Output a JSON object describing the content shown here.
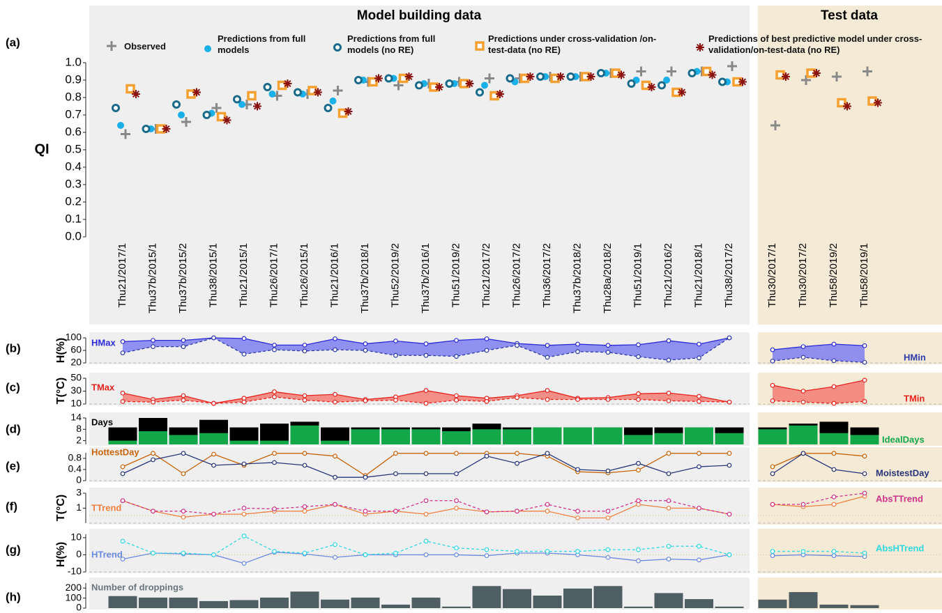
{
  "chart_data": [
    {
      "type": "scatter",
      "panel_label": "(a)",
      "title": "Model building data",
      "test_title": "Test data",
      "ylabel": "QI",
      "categories": [
        "Thu21/2017/1",
        "Thu37b/2015/1",
        "Thu37b/2015/2",
        "Thu38/2015/1",
        "Thu21/2015/1",
        "Thu26/2017/1",
        "Thu26/2015/1",
        "Thu21/2016/1",
        "Thu37b/2018/1",
        "Thu52/2019/2",
        "Thu37b/2016/1",
        "Thu51/2019/2",
        "Thu21/2017/2",
        "Thu26/2017/2",
        "Thu36/2017/2",
        "Thu37b/2018/2",
        "Thu28a/2018/2",
        "Thu51/2019/1",
        "Thu21/2016/2",
        "Thu21/2018/1",
        "Thu38/2017/2"
      ],
      "test_categories": [
        "Thu30/2017/1",
        "Thu30/2017/2",
        "Thu58/2019/2",
        "Thu58/2019/1"
      ],
      "ylim": [
        0,
        1
      ],
      "yticks": [
        {
          "value": 0,
          "label": "0.0"
        },
        0.1,
        0.2,
        0.3,
        0.4,
        0.5,
        0.6,
        0.7,
        0.8,
        0.9,
        {
          "value": 1,
          "label": "1.0"
        }
      ],
      "series": [
        {
          "name": "Observed",
          "marker": "plus",
          "color": "#888888",
          "values": [
            0.59,
            0.62,
            0.66,
            0.74,
            0.76,
            0.81,
            0.82,
            0.84,
            0.89,
            0.87,
            0.88,
            0.89,
            0.91,
            0.91,
            0.92,
            0.92,
            0.94,
            0.95,
            0.95,
            0.95,
            0.98
          ],
          "test_values": [
            0.64,
            0.9,
            0.92,
            0.95
          ]
        },
        {
          "name": "Predictions from full models",
          "marker": "dot",
          "color": "#1ab0e8",
          "values": [
            0.64,
            0.62,
            0.7,
            0.71,
            0.76,
            0.82,
            0.82,
            0.78,
            0.9,
            0.91,
            0.88,
            0.88,
            0.87,
            0.89,
            0.92,
            0.92,
            0.94,
            0.9,
            0.9,
            0.95,
            0.89
          ],
          "test_values": [
            null,
            null,
            null,
            null
          ]
        },
        {
          "name": "Predictions from full models (no RE)",
          "marker": "ring",
          "color": "#1a6a8a",
          "values": [
            0.74,
            0.62,
            0.76,
            0.7,
            0.79,
            0.86,
            0.83,
            0.74,
            0.9,
            0.91,
            0.87,
            0.88,
            0.83,
            0.91,
            0.92,
            0.92,
            0.94,
            0.88,
            0.87,
            0.94,
            0.89
          ],
          "test_values": [
            null,
            null,
            null,
            null
          ]
        },
        {
          "name": "Predictions under cross-validation /on-test-data (no RE)",
          "marker": "square",
          "color": "#f5a030",
          "values": [
            0.85,
            0.62,
            0.82,
            0.69,
            0.81,
            0.87,
            0.84,
            0.71,
            0.89,
            0.91,
            0.86,
            0.88,
            0.81,
            0.91,
            0.91,
            0.92,
            0.94,
            0.87,
            0.83,
            0.95,
            0.89
          ],
          "test_values": [
            0.93,
            0.94,
            0.77,
            0.78
          ]
        },
        {
          "name": "Predictions of best predictive model under cross-validation/on-test-data (no RE)",
          "marker": "asterisk",
          "color": "#8b1010",
          "values": [
            0.82,
            0.62,
            0.83,
            0.67,
            0.75,
            0.88,
            0.83,
            0.72,
            0.91,
            0.92,
            0.86,
            0.88,
            0.82,
            0.92,
            0.92,
            0.92,
            0.93,
            0.86,
            0.83,
            0.93,
            0.89
          ],
          "test_values": [
            0.92,
            0.94,
            0.75,
            0.77
          ]
        }
      ]
    },
    {
      "type": "area",
      "panel_label": "(b)",
      "ylabel": "H(%)",
      "ylim": [
        20,
        100
      ],
      "yticks": [
        20,
        60,
        100
      ],
      "fill": "#8585f0",
      "series": [
        {
          "name": "HMax",
          "color": "#2a2ad8",
          "linestyle": "solid",
          "values": [
            88,
            92,
            92,
            100,
            98,
            77,
            77,
            97,
            81,
            90,
            81,
            92,
            97,
            82,
            76,
            80,
            76,
            78,
            91,
            80,
            100
          ],
          "test_values": [
            62,
            72,
            80,
            75
          ]
        },
        {
          "name": "HMin",
          "color": "#2a3aa8",
          "linestyle": "dashed",
          "values": [
            52,
            72,
            72,
            100,
            48,
            62,
            58,
            62,
            60,
            44,
            44,
            41,
            60,
            76,
            38,
            56,
            54,
            40,
            29,
            36,
            100
          ],
          "test_values": [
            26,
            38,
            27,
            22
          ]
        }
      ]
    },
    {
      "type": "area",
      "panel_label": "(c)",
      "ylabel": "T(°C)",
      "ylim": [
        10,
        50
      ],
      "yticks": [
        10,
        30,
        50
      ],
      "fill": "#f4847c",
      "series": [
        {
          "name": "TMax",
          "color": "#e8221d",
          "linestyle": "solid",
          "values": [
            27,
            17,
            23,
            11,
            19,
            29,
            23,
            25,
            17,
            21,
            31,
            23,
            19,
            23,
            31,
            19,
            20,
            26,
            27,
            22,
            13
          ],
          "test_values": [
            39,
            30,
            37,
            47
          ]
        },
        {
          "name": "TMin",
          "color": "#e8221d",
          "linestyle": "dashed",
          "values": [
            14,
            13,
            16,
            11,
            13,
            21,
            16,
            13,
            15,
            16,
            11,
            16,
            14,
            20,
            17,
            17,
            17,
            17,
            15,
            14,
            13
          ],
          "test_values": [
            15,
            13,
            11,
            14
          ]
        }
      ]
    },
    {
      "type": "bar",
      "panel_label": "(d)",
      "ylim": [
        0,
        14
      ],
      "yticks": [
        2,
        8,
        14
      ],
      "series": [
        {
          "name": "Days",
          "color": "#000000",
          "values": [
            9,
            14,
            9,
            13,
            9,
            11,
            12,
            9,
            9,
            9,
            9,
            9,
            11,
            9,
            9,
            9,
            9,
            9,
            9,
            9,
            9
          ],
          "test_values": [
            9,
            11,
            12,
            9
          ]
        },
        {
          "name": "IdealDays",
          "color": "#12a84a",
          "values": [
            2,
            7,
            5,
            6,
            2,
            2,
            10,
            2,
            8,
            8,
            8,
            7,
            8,
            8,
            9,
            9,
            9,
            5,
            6,
            9,
            6
          ],
          "test_values": [
            8,
            10,
            6,
            5
          ]
        }
      ]
    },
    {
      "type": "line",
      "panel_label": "(e)",
      "ylim": [
        0,
        1
      ],
      "yticks": [
        0,
        0.4,
        0.8
      ],
      "series": [
        {
          "name": "HottestDay",
          "color": "#c8640a",
          "linestyle": "solid",
          "values": [
            0.5,
            0.98,
            0.25,
            0.95,
            0.55,
            0.98,
            0.98,
            0.88,
            0.18,
            0.98,
            0.98,
            0.98,
            0.98,
            0.98,
            0.88,
            0.32,
            0.28,
            0.38,
            0.98,
            0.98,
            0.98
          ],
          "test_values": [
            0.5,
            0.98,
            0.98,
            0.88
          ]
        },
        {
          "name": "MoistestDay",
          "color": "#26357a",
          "linestyle": "solid",
          "values": [
            0.25,
            0.75,
            0.98,
            0.55,
            0.6,
            0.65,
            0.55,
            0.12,
            0.12,
            0.25,
            0.25,
            0.25,
            0.88,
            0.62,
            0.98,
            0.4,
            0.35,
            0.62,
            0.25,
            0.5,
            0.55
          ],
          "test_values": [
            0.25,
            0.98,
            0.4,
            0.25
          ]
        }
      ]
    },
    {
      "type": "line",
      "panel_label": "(f)",
      "ylabel": "T(°C)",
      "ylim": [
        -1,
        3
      ],
      "yticks": [
        1,
        3
      ],
      "hline": 0,
      "series": [
        {
          "name": "TTrend",
          "color": "#f08040",
          "linestyle": "solid",
          "values": [
            2.0,
            0.6,
            -0.2,
            0.2,
            0.2,
            0.6,
            0.6,
            1.5,
            0.2,
            0.6,
            0.2,
            1.0,
            0.5,
            0.6,
            0.6,
            -0.3,
            -0.3,
            1.5,
            1.0,
            1.0,
            0.2
          ],
          "test_values": [
            1.5,
            1.2,
            1.5,
            2.6
          ]
        },
        {
          "name": "AbsTTrend",
          "color": "#d0308a",
          "linestyle": "dashed",
          "values": [
            2.0,
            0.6,
            0.6,
            0.2,
            1.0,
            0.9,
            1.2,
            1.5,
            0.6,
            0.6,
            2.0,
            2.0,
            0.5,
            0.6,
            1.5,
            0.6,
            0.6,
            2.0,
            2.0,
            1.0,
            0.2
          ],
          "test_values": [
            1.5,
            1.5,
            2.5,
            3.0
          ]
        }
      ]
    },
    {
      "type": "line",
      "panel_label": "(g)",
      "ylabel": "H(%)",
      "ylim": [
        -10,
        12
      ],
      "yticks": [
        -10,
        0,
        10
      ],
      "hline": 0,
      "series": [
        {
          "name": "HTrend",
          "color": "#6a8ae0",
          "linestyle": "solid",
          "values": [
            -2.5,
            1,
            0.5,
            0,
            -5,
            1.5,
            0.5,
            -1.5,
            0,
            0,
            0,
            0,
            -0.5,
            1,
            1,
            0,
            -1.5,
            -3.5,
            -2.5,
            -3,
            0
          ],
          "test_values": [
            -0.5,
            0,
            -0.5,
            -1
          ]
        },
        {
          "name": "AbsHTrend",
          "color": "#30d8e0",
          "linestyle": "dashed",
          "values": [
            8,
            1,
            1,
            0,
            11,
            2,
            1,
            6,
            0,
            1,
            8,
            4,
            3,
            2,
            2,
            2,
            3,
            3,
            5,
            5,
            0
          ],
          "test_values": [
            2,
            2,
            2,
            1
          ]
        }
      ]
    },
    {
      "type": "bar",
      "panel_label": "(h)",
      "ylim": [
        0,
        250
      ],
      "yticks": [
        0,
        100,
        200
      ],
      "series": [
        {
          "name": "Number of droppings",
          "color": "#4f5e63",
          "values": [
            120,
            105,
            105,
            70,
            80,
            105,
            165,
            85,
            105,
            35,
            105,
            15,
            220,
            190,
            125,
            195,
            220,
            15,
            150,
            90,
            15
          ],
          "test_values": [
            85,
            160,
            35,
            30
          ]
        }
      ]
    }
  ]
}
